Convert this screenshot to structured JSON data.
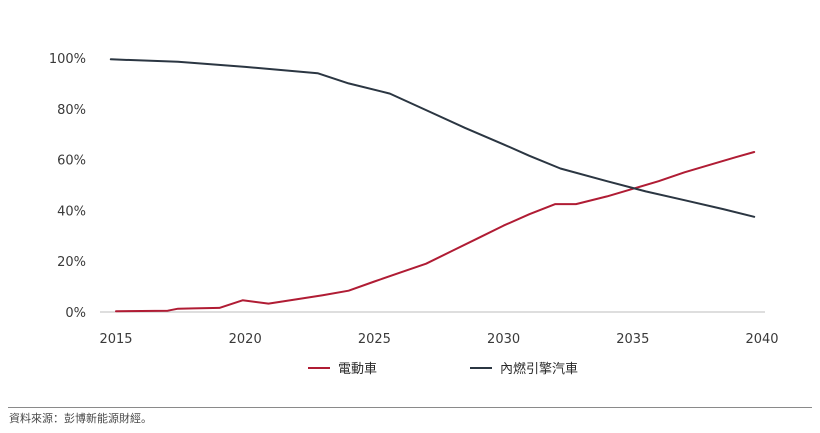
{
  "chart_data": {
    "type": "line",
    "title": "",
    "xlabel": "",
    "ylabel": "",
    "xlim": [
      2015,
      2040
    ],
    "ylim": [
      0,
      100
    ],
    "x_ticks": [
      "2015",
      "2020",
      "2025",
      "2030",
      "2035",
      "2040"
    ],
    "y_ticks": [
      "0%",
      "20%",
      "40%",
      "60%",
      "80%",
      "100%"
    ],
    "grid": false,
    "legend_position": "bottom-center",
    "series": [
      {
        "name": "電動車",
        "color": "#b01c34",
        "x": [
          2015,
          2016,
          2017,
          2017.4,
          2018,
          2019,
          2019.9,
          2020.9,
          2022,
          2023,
          2024,
          2025,
          2026,
          2027,
          2028,
          2029,
          2030,
          2031,
          2032,
          2032.8,
          2034,
          2035,
          2036,
          2037,
          2038,
          2039,
          2039.7
        ],
        "values": [
          0.3,
          0.4,
          0.5,
          1.3,
          1.4,
          1.6,
          4.6,
          3.3,
          5.0,
          6.6,
          8.4,
          12.0,
          15.5,
          19.0,
          24.0,
          29.0,
          34.0,
          38.5,
          42.5,
          42.5,
          45.5,
          48.5,
          51.5,
          55.0,
          58.0,
          61.0,
          63.0
        ]
      },
      {
        "name": "內燃引擎汽車",
        "color": "#2b3642",
        "x": [
          2014.8,
          2017.4,
          2020,
          2022.8,
          2024,
          2025.6,
          2027,
          2028.5,
          2030,
          2031,
          2032.2,
          2034,
          2035.5,
          2037,
          2038.5,
          2039.7
        ],
        "values": [
          99.5,
          98.5,
          96.5,
          94.0,
          90.0,
          86.0,
          79.5,
          72.5,
          66.0,
          61.5,
          56.5,
          51.5,
          47.5,
          44.0,
          40.5,
          37.5
        ]
      }
    ],
    "source_note": "資料來源：彭博新能源財經。"
  }
}
